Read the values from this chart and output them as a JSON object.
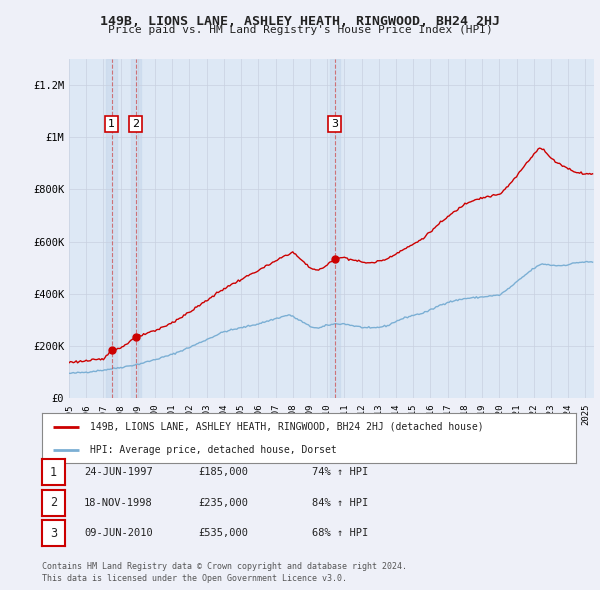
{
  "title": "149B, LIONS LANE, ASHLEY HEATH, RINGWOOD, BH24 2HJ",
  "subtitle": "Price paid vs. HM Land Registry's House Price Index (HPI)",
  "ylim": [
    0,
    1300000
  ],
  "yticks": [
    0,
    200000,
    400000,
    600000,
    800000,
    1000000,
    1200000
  ],
  "ytick_labels": [
    "£0",
    "£200K",
    "£400K",
    "£600K",
    "£800K",
    "£1M",
    "£1.2M"
  ],
  "background_color": "#eef0f8",
  "plot_bg_color": "#dde8f5",
  "grid_color": "#c8d0e0",
  "hpi_color": "#7bafd4",
  "price_color": "#cc0000",
  "transactions": [
    {
      "num": 1,
      "date": "24-JUN-1997",
      "price": 185000,
      "pct": "74%",
      "x": 1997.47
    },
    {
      "num": 2,
      "date": "18-NOV-1998",
      "price": 235000,
      "pct": "84%",
      "x": 1998.88
    },
    {
      "num": 3,
      "date": "09-JUN-2010",
      "price": 535000,
      "pct": "68%",
      "x": 2010.44
    }
  ],
  "legend_line1": "149B, LIONS LANE, ASHLEY HEATH, RINGWOOD, BH24 2HJ (detached house)",
  "legend_line2": "HPI: Average price, detached house, Dorset",
  "footer1": "Contains HM Land Registry data © Crown copyright and database right 2024.",
  "footer2": "This data is licensed under the Open Government Licence v3.0.",
  "xmin": 1995.0,
  "xmax": 2025.5
}
